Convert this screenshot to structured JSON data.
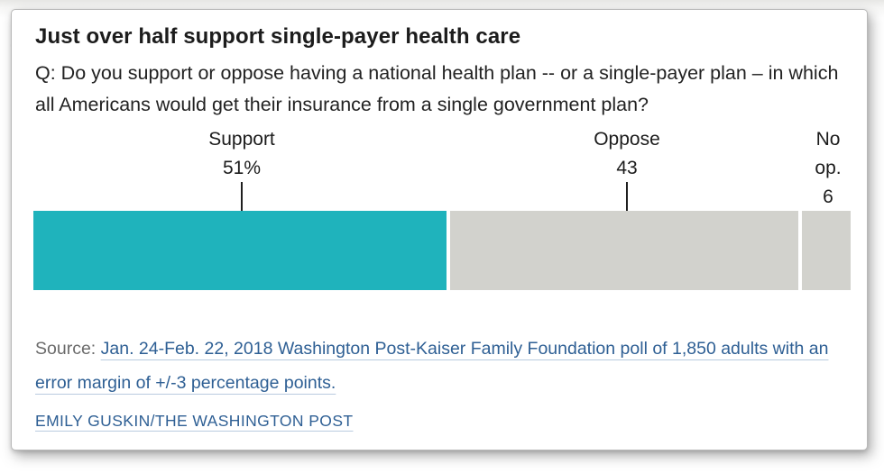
{
  "card": {
    "title": "Just over half support single-payer health care",
    "question": "Q: Do you support or oppose having a national health plan -- or a single-payer plan – in which all Americans would get their insurance from a single government plan?",
    "source_prefix": "Source:",
    "source_link": "Jan. 24-Feb. 22, 2018 Washington Post-Kaiser Family Foundation poll of 1,850 adults with an error margin of +/-3 percentage points.",
    "credit": "EMILY GUSKIN/THE WASHINGTON POST"
  },
  "chart_data": {
    "type": "bar",
    "subtype": "horizontal-stacked-single-bar",
    "title": "Just over half support single-payer health care",
    "categories": [
      "Support",
      "Oppose",
      "No op."
    ],
    "values": [
      51,
      43,
      6
    ],
    "value_labels": [
      "51%",
      "43",
      "6"
    ],
    "colors": [
      "#1FB3BC",
      "#D2D2CD",
      "#D2D2CD"
    ],
    "xlim": [
      0,
      100
    ],
    "legend": "none",
    "grid": false,
    "annotation_style": "labels above bar with leader lines ending in black dots"
  },
  "colors": {
    "accent_teal": "#1FB3BC",
    "neutral_gray": "#D2D2CD",
    "link_blue": "#2E5F94",
    "text_dark": "#1C1C1C"
  }
}
